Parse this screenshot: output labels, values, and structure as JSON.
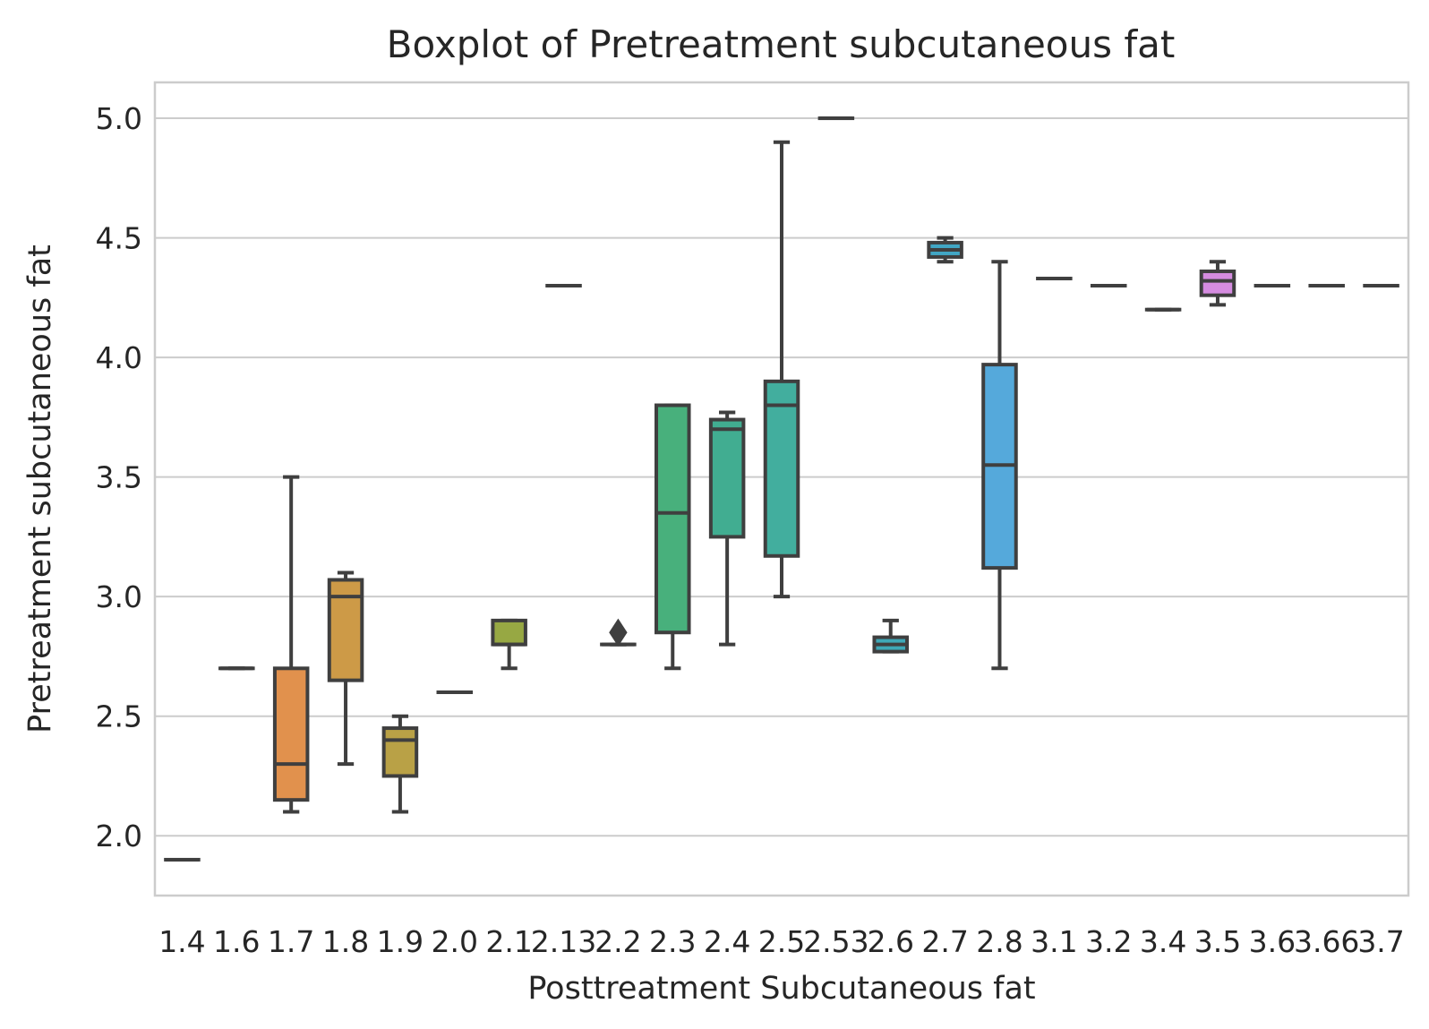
{
  "chart_data": {
    "type": "boxplot",
    "title": "Boxplot of Pretreatment subcutaneous fat",
    "xlabel": "Posttreatment Subcutaneous fat",
    "ylabel": "Pretreatment subcutaneous fat",
    "ylim": [
      1.75,
      5.15
    ],
    "yticks": [
      "2.0",
      "2.5",
      "3.0",
      "3.5",
      "4.0",
      "4.5",
      "5.0"
    ],
    "grid": true,
    "categories": [
      "1.4",
      "1.6",
      "1.7",
      "1.8",
      "1.9",
      "2.0",
      "2.1",
      "2.13",
      "2.2",
      "2.3",
      "2.4",
      "2.5",
      "2.53",
      "2.6",
      "2.7",
      "2.8",
      "3.1",
      "3.2",
      "3.4",
      "3.5",
      "3.6",
      "3.66",
      "3.7"
    ],
    "boxes": [
      {
        "category": "1.4",
        "whislo": 1.9,
        "q1": 1.9,
        "median": 1.9,
        "q3": 1.9,
        "whishi": 1.9,
        "color": "#3274a1",
        "fliers": []
      },
      {
        "category": "1.6",
        "whislo": 2.7,
        "q1": 2.7,
        "median": 2.7,
        "q3": 2.7,
        "whishi": 2.7,
        "color": "#e1812c",
        "fliers": []
      },
      {
        "category": "1.7",
        "whislo": 2.1,
        "q1": 2.15,
        "median": 2.3,
        "q3": 2.7,
        "whishi": 3.5,
        "color": "#e1914d",
        "fliers": []
      },
      {
        "category": "1.8",
        "whislo": 2.3,
        "q1": 2.65,
        "median": 3.0,
        "q3": 3.07,
        "whishi": 3.1,
        "color": "#cd9a47",
        "fliers": []
      },
      {
        "category": "1.9",
        "whislo": 2.1,
        "q1": 2.25,
        "median": 2.4,
        "q3": 2.45,
        "whishi": 2.5,
        "color": "#b9a146",
        "fliers": []
      },
      {
        "category": "2.0",
        "whislo": 2.6,
        "q1": 2.6,
        "median": 2.6,
        "q3": 2.6,
        "whishi": 2.6,
        "color": "#a9a545",
        "fliers": []
      },
      {
        "category": "2.1",
        "whislo": 2.7,
        "q1": 2.8,
        "median": 2.8,
        "q3": 2.9,
        "whishi": 2.9,
        "color": "#97a843",
        "fliers": []
      },
      {
        "category": "2.13",
        "whislo": 4.3,
        "q1": 4.3,
        "median": 4.3,
        "q3": 4.3,
        "whishi": 4.3,
        "color": "#7cae45",
        "fliers": []
      },
      {
        "category": "2.2",
        "whislo": 2.8,
        "q1": 2.8,
        "median": 2.8,
        "q3": 2.8,
        "whishi": 2.8,
        "color": "#5db04f",
        "fliers": [
          2.85
        ]
      },
      {
        "category": "2.3",
        "whislo": 2.7,
        "q1": 2.85,
        "median": 3.35,
        "q3": 3.8,
        "whishi": 3.8,
        "color": "#48b07c",
        "fliers": []
      },
      {
        "category": "2.4",
        "whislo": 2.8,
        "q1": 3.25,
        "median": 3.7,
        "q3": 3.74,
        "whishi": 3.77,
        "color": "#41ad91",
        "fliers": []
      },
      {
        "category": "2.5",
        "whislo": 3.0,
        "q1": 3.17,
        "median": 3.8,
        "q3": 3.9,
        "whishi": 4.9,
        "color": "#42ae9e",
        "fliers": []
      },
      {
        "category": "2.53",
        "whislo": 5.0,
        "q1": 5.0,
        "median": 5.0,
        "q3": 5.0,
        "whishi": 5.0,
        "color": "#3fabab",
        "fliers": []
      },
      {
        "category": "2.6",
        "whislo": 2.77,
        "q1": 2.77,
        "median": 2.8,
        "q3": 2.83,
        "whishi": 2.9,
        "color": "#3ea8b7",
        "fliers": []
      },
      {
        "category": "2.7",
        "whislo": 4.4,
        "q1": 4.42,
        "median": 4.45,
        "q3": 4.48,
        "whishi": 4.5,
        "color": "#41a6c4",
        "fliers": []
      },
      {
        "category": "2.8",
        "whislo": 2.7,
        "q1": 3.12,
        "median": 3.55,
        "q3": 3.97,
        "whishi": 4.4,
        "color": "#55a9db",
        "fliers": []
      },
      {
        "category": "3.1",
        "whislo": 4.33,
        "q1": 4.33,
        "median": 4.33,
        "q3": 4.33,
        "whishi": 4.33,
        "color": "#6ea5e6",
        "fliers": []
      },
      {
        "category": "3.2",
        "whislo": 4.3,
        "q1": 4.3,
        "median": 4.3,
        "q3": 4.3,
        "whishi": 4.3,
        "color": "#8f9ce9",
        "fliers": []
      },
      {
        "category": "3.4",
        "whislo": 4.2,
        "q1": 4.2,
        "median": 4.2,
        "q3": 4.2,
        "whishi": 4.2,
        "color": "#b38fe6",
        "fliers": []
      },
      {
        "category": "3.5",
        "whislo": 4.22,
        "q1": 4.26,
        "median": 4.32,
        "q3": 4.36,
        "whishi": 4.4,
        "color": "#d58ce0",
        "fliers": []
      },
      {
        "category": "3.6",
        "whislo": 4.3,
        "q1": 4.3,
        "median": 4.3,
        "q3": 4.3,
        "whishi": 4.3,
        "color": "#e48ad0",
        "fliers": []
      },
      {
        "category": "3.66",
        "whislo": 4.3,
        "q1": 4.3,
        "median": 4.3,
        "q3": 4.3,
        "whishi": 4.3,
        "color": "#e78bc0",
        "fliers": []
      },
      {
        "category": "3.7",
        "whislo": 4.3,
        "q1": 4.3,
        "median": 4.3,
        "q3": 4.3,
        "whishi": 4.3,
        "color": "#e98bb0",
        "fliers": []
      }
    ]
  }
}
